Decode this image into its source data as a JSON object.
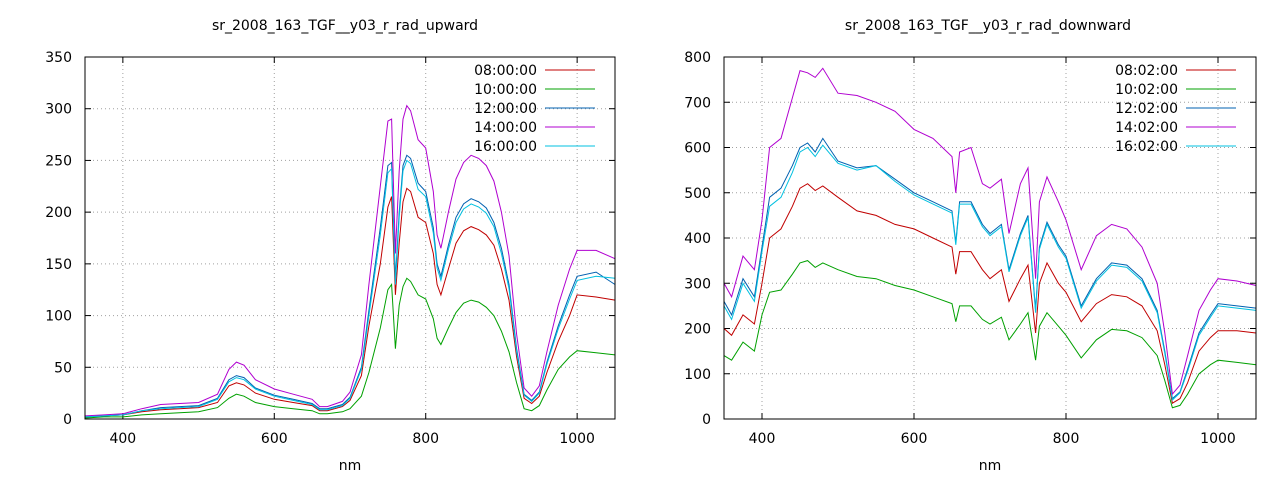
{
  "chart_data": [
    {
      "type": "line",
      "title": "sr_2008_163_TGF__y03_r_rad_upward",
      "xlabel": "nm",
      "ylabel": "",
      "xlim": [
        350,
        1050
      ],
      "ylim": [
        0,
        350
      ],
      "xticks": [
        400,
        600,
        800,
        1000
      ],
      "yticks": [
        0,
        50,
        100,
        150,
        200,
        250,
        300,
        350
      ],
      "grid": true,
      "legend_position": "top-right",
      "series": [
        {
          "name": "08:00:00",
          "color": "#c00000",
          "x": [
            350,
            375,
            400,
            425,
            450,
            475,
            500,
            525,
            540,
            550,
            560,
            575,
            600,
            625,
            650,
            660,
            670,
            690,
            700,
            715,
            725,
            740,
            750,
            755,
            760,
            765,
            770,
            775,
            780,
            790,
            800,
            810,
            815,
            820,
            830,
            840,
            850,
            860,
            870,
            880,
            890,
            900,
            910,
            920,
            930,
            940,
            950,
            960,
            975,
            990,
            1000,
            1025,
            1050
          ],
          "y": [
            2,
            3,
            4,
            7,
            9,
            10,
            11,
            16,
            32,
            35,
            33,
            25,
            19,
            16,
            13,
            8,
            8,
            12,
            18,
            42,
            90,
            150,
            205,
            215,
            120,
            170,
            210,
            223,
            220,
            195,
            190,
            160,
            130,
            120,
            145,
            170,
            182,
            186,
            183,
            178,
            168,
            145,
            115,
            60,
            20,
            15,
            22,
            45,
            75,
            100,
            120,
            118,
            115
          ]
        },
        {
          "name": "10:00:00",
          "color": "#00a000",
          "x": [
            350,
            375,
            400,
            425,
            450,
            475,
            500,
            525,
            540,
            550,
            560,
            575,
            600,
            625,
            650,
            660,
            670,
            690,
            700,
            715,
            725,
            740,
            750,
            755,
            760,
            765,
            770,
            775,
            780,
            790,
            800,
            810,
            815,
            820,
            830,
            840,
            850,
            860,
            870,
            880,
            890,
            900,
            910,
            920,
            930,
            940,
            950,
            960,
            975,
            990,
            1000,
            1025,
            1050
          ],
          "y": [
            1,
            2,
            2,
            4,
            5,
            6,
            7,
            11,
            20,
            24,
            22,
            16,
            12,
            10,
            8,
            5,
            5,
            7,
            10,
            22,
            45,
            88,
            125,
            130,
            68,
            110,
            128,
            136,
            133,
            120,
            116,
            97,
            78,
            72,
            88,
            103,
            112,
            115,
            113,
            108,
            100,
            85,
            65,
            35,
            10,
            8,
            13,
            28,
            48,
            60,
            66,
            64,
            62
          ]
        },
        {
          "name": "12:00:00",
          "color": "#0060b0",
          "x": [
            350,
            375,
            400,
            425,
            450,
            475,
            500,
            525,
            540,
            550,
            560,
            575,
            600,
            625,
            650,
            660,
            670,
            690,
            700,
            715,
            725,
            740,
            750,
            755,
            760,
            765,
            770,
            775,
            780,
            790,
            800,
            810,
            815,
            820,
            830,
            840,
            850,
            860,
            870,
            880,
            890,
            900,
            910,
            920,
            930,
            940,
            950,
            960,
            975,
            990,
            1000,
            1025,
            1050
          ],
          "y": [
            2,
            3,
            4,
            8,
            11,
            12,
            13,
            20,
            38,
            42,
            40,
            30,
            23,
            19,
            15,
            10,
            10,
            14,
            21,
            50,
            105,
            185,
            245,
            248,
            135,
            200,
            245,
            255,
            252,
            228,
            220,
            185,
            150,
            138,
            168,
            195,
            208,
            213,
            210,
            204,
            190,
            165,
            130,
            68,
            24,
            18,
            26,
            55,
            90,
            120,
            138,
            142,
            130
          ]
        },
        {
          "name": "14:00:00",
          "color": "#b000d0",
          "x": [
            350,
            375,
            400,
            425,
            450,
            475,
            500,
            525,
            540,
            550,
            560,
            575,
            600,
            625,
            650,
            660,
            670,
            690,
            700,
            715,
            725,
            740,
            750,
            755,
            760,
            765,
            770,
            775,
            780,
            790,
            800,
            810,
            815,
            820,
            830,
            840,
            850,
            860,
            870,
            880,
            890,
            900,
            910,
            920,
            930,
            940,
            950,
            960,
            975,
            990,
            1000,
            1025,
            1050
          ],
          "y": [
            3,
            4,
            5,
            10,
            14,
            15,
            16,
            24,
            48,
            55,
            52,
            38,
            29,
            24,
            19,
            12,
            12,
            17,
            26,
            62,
            130,
            225,
            288,
            290,
            160,
            240,
            290,
            303,
            298,
            270,
            262,
            220,
            178,
            165,
            200,
            232,
            248,
            255,
            252,
            245,
            230,
            200,
            158,
            82,
            30,
            22,
            32,
            65,
            110,
            145,
            163,
            163,
            155
          ]
        },
        {
          "name": "16:00:00",
          "color": "#00c0e0",
          "x": [
            350,
            375,
            400,
            425,
            450,
            475,
            500,
            525,
            540,
            550,
            560,
            575,
            600,
            625,
            650,
            660,
            670,
            690,
            700,
            715,
            725,
            740,
            750,
            755,
            760,
            765,
            770,
            775,
            780,
            790,
            800,
            810,
            815,
            820,
            830,
            840,
            850,
            860,
            870,
            880,
            890,
            900,
            910,
            920,
            930,
            940,
            950,
            960,
            975,
            990,
            1000,
            1025,
            1050
          ],
          "y": [
            2,
            3,
            4,
            8,
            10,
            11,
            12,
            19,
            36,
            40,
            38,
            29,
            22,
            18,
            14,
            9,
            9,
            13,
            20,
            48,
            100,
            178,
            238,
            242,
            130,
            195,
            240,
            250,
            247,
            222,
            215,
            180,
            146,
            134,
            164,
            190,
            203,
            208,
            205,
            199,
            186,
            160,
            126,
            65,
            23,
            17,
            25,
            53,
            87,
            116,
            134,
            138,
            136
          ]
        }
      ]
    },
    {
      "type": "line",
      "title": "sr_2008_163_TGF__y03_r_rad_downward",
      "xlabel": "nm",
      "ylabel": "",
      "xlim": [
        350,
        1050
      ],
      "ylim": [
        0,
        800
      ],
      "xticks": [
        400,
        600,
        800,
        1000
      ],
      "yticks": [
        0,
        100,
        200,
        300,
        400,
        500,
        600,
        700,
        800
      ],
      "grid": true,
      "legend_position": "top-right",
      "series": [
        {
          "name": "08:02:00",
          "color": "#c00000",
          "x": [
            350,
            360,
            375,
            390,
            400,
            410,
            425,
            440,
            450,
            460,
            470,
            480,
            500,
            525,
            550,
            575,
            600,
            625,
            650,
            655,
            660,
            675,
            690,
            700,
            715,
            725,
            740,
            750,
            760,
            765,
            775,
            790,
            800,
            820,
            840,
            860,
            880,
            900,
            920,
            930,
            940,
            950,
            960,
            975,
            990,
            1000,
            1025,
            1050
          ],
          "y": [
            200,
            185,
            230,
            210,
            300,
            400,
            420,
            470,
            510,
            520,
            505,
            515,
            490,
            460,
            450,
            430,
            420,
            400,
            380,
            320,
            370,
            370,
            330,
            310,
            330,
            260,
            310,
            340,
            190,
            300,
            345,
            300,
            280,
            215,
            255,
            275,
            270,
            250,
            195,
            120,
            35,
            45,
            80,
            150,
            180,
            195,
            195,
            190
          ]
        },
        {
          "name": "10:02:00",
          "color": "#00a000",
          "x": [
            350,
            360,
            375,
            390,
            400,
            410,
            425,
            440,
            450,
            460,
            470,
            480,
            500,
            525,
            550,
            575,
            600,
            625,
            650,
            655,
            660,
            675,
            690,
            700,
            715,
            725,
            740,
            750,
            760,
            765,
            775,
            790,
            800,
            820,
            840,
            860,
            880,
            900,
            920,
            930,
            940,
            950,
            960,
            975,
            990,
            1000,
            1025,
            1050
          ],
          "y": [
            140,
            130,
            170,
            150,
            230,
            280,
            285,
            320,
            345,
            350,
            335,
            345,
            330,
            315,
            310,
            295,
            285,
            270,
            255,
            215,
            250,
            250,
            220,
            210,
            225,
            175,
            210,
            235,
            130,
            205,
            235,
            205,
            185,
            135,
            175,
            198,
            195,
            180,
            140,
            85,
            25,
            30,
            55,
            100,
            120,
            130,
            125,
            120
          ]
        },
        {
          "name": "12:02:00",
          "color": "#0060b0",
          "x": [
            350,
            360,
            375,
            390,
            400,
            410,
            425,
            440,
            450,
            460,
            470,
            480,
            500,
            525,
            550,
            575,
            600,
            625,
            650,
            655,
            660,
            675,
            690,
            700,
            715,
            725,
            740,
            750,
            760,
            765,
            775,
            790,
            800,
            820,
            840,
            860,
            880,
            900,
            920,
            930,
            940,
            950,
            960,
            975,
            990,
            1000,
            1025,
            1050
          ],
          "y": [
            260,
            230,
            310,
            270,
            380,
            490,
            510,
            560,
            600,
            610,
            590,
            620,
            570,
            555,
            560,
            530,
            500,
            480,
            460,
            390,
            480,
            480,
            430,
            410,
            430,
            330,
            410,
            450,
            240,
            380,
            435,
            385,
            360,
            250,
            310,
            345,
            340,
            310,
            240,
            150,
            45,
            60,
            110,
            190,
            230,
            255,
            250,
            245
          ]
        },
        {
          "name": "14:02:00",
          "color": "#b000d0",
          "x": [
            350,
            360,
            375,
            390,
            400,
            410,
            425,
            440,
            450,
            460,
            470,
            480,
            500,
            525,
            550,
            575,
            600,
            625,
            650,
            655,
            660,
            675,
            690,
            700,
            715,
            725,
            740,
            750,
            760,
            765,
            775,
            790,
            800,
            820,
            840,
            860,
            880,
            900,
            920,
            930,
            940,
            950,
            960,
            975,
            990,
            1000,
            1025,
            1050
          ],
          "y": [
            300,
            270,
            360,
            330,
            440,
            600,
            620,
            710,
            770,
            765,
            755,
            775,
            720,
            715,
            700,
            680,
            640,
            620,
            580,
            500,
            590,
            600,
            520,
            510,
            530,
            410,
            520,
            555,
            310,
            480,
            535,
            480,
            440,
            330,
            405,
            430,
            420,
            380,
            300,
            190,
            55,
            75,
            140,
            240,
            285,
            310,
            305,
            295
          ]
        },
        {
          "name": "16:02:00",
          "color": "#00c0e0",
          "x": [
            350,
            360,
            375,
            390,
            400,
            410,
            425,
            440,
            450,
            460,
            470,
            480,
            500,
            525,
            550,
            575,
            600,
            625,
            650,
            655,
            660,
            675,
            690,
            700,
            715,
            725,
            740,
            750,
            760,
            765,
            775,
            790,
            800,
            820,
            840,
            860,
            880,
            900,
            920,
            930,
            940,
            950,
            960,
            975,
            990,
            1000,
            1025,
            1050
          ],
          "y": [
            250,
            220,
            300,
            260,
            370,
            470,
            490,
            545,
            590,
            600,
            580,
            605,
            565,
            550,
            560,
            525,
            495,
            475,
            455,
            385,
            475,
            475,
            425,
            405,
            425,
            325,
            405,
            445,
            235,
            375,
            430,
            380,
            355,
            245,
            305,
            340,
            335,
            305,
            235,
            145,
            42,
            58,
            105,
            185,
            225,
            250,
            245,
            240
          ]
        }
      ]
    }
  ]
}
